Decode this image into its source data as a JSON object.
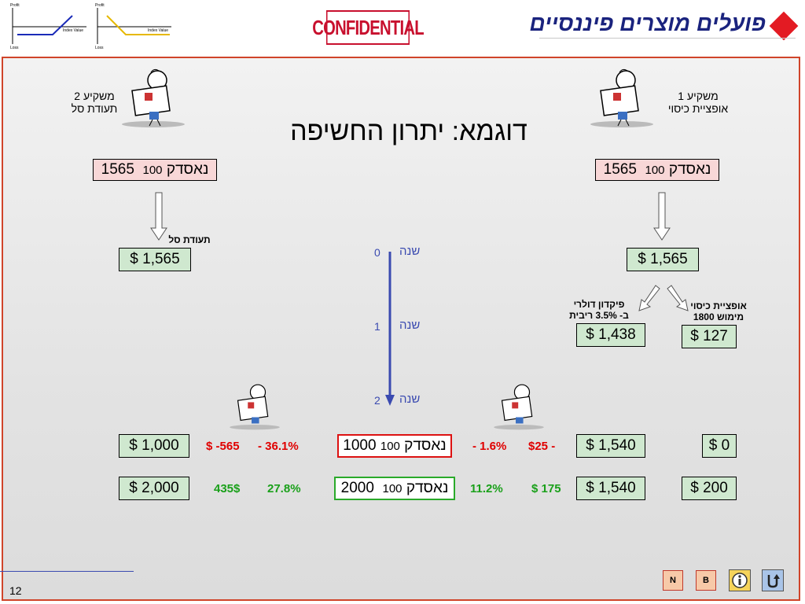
{
  "header": {
    "confidential": "CONFIDENTIAL",
    "logo_text": "פועלים מוצרים פיננסיים",
    "chart1": {
      "profit": "Profit",
      "loss": "Loss",
      "index": "Index Value"
    },
    "chart2": {
      "profit": "Profit",
      "loss": "Loss",
      "index": "Index Value"
    }
  },
  "title": "דוגמא: יתרון החשיפה",
  "investor1": {
    "line1": "משקיע 1",
    "line2": "אופציית כיסוי"
  },
  "investor2": {
    "line1": "משקיע 2",
    "line2": "תעודת סל"
  },
  "left": {
    "nasdaq_name": "נאסדק",
    "nasdaq_100": "100",
    "nasdaq_value": "1565",
    "label": "תעודת סל",
    "amount": "$ 1,565"
  },
  "right": {
    "nasdaq_name": "נאסדק",
    "nasdaq_100": "100",
    "nasdaq_value": "1565",
    "amount": "$ 1,565",
    "deposit_label_1": "פיקדון דולרי",
    "deposit_label_2": "ב- 3.5% ריבית",
    "deposit_amount": "$ 1,438",
    "option_label_1": "אופציית כיסוי",
    "option_label_2": "מימוש 1800",
    "option_amount": "$ 127"
  },
  "timeline": {
    "year_word": "שנה",
    "y0": "0",
    "y1": "1",
    "y2": "2"
  },
  "scenario1": {
    "nasdaq_name": "נאסדק",
    "nasdaq_100": "100",
    "nasdaq_value": "1000",
    "left_amount": "$ 1,000",
    "left_change": "$ -565",
    "left_pct": "- 36.1%",
    "right_change": "$25 -",
    "right_pct": "- 1.6%",
    "right_amount": "$ 1,540",
    "option_amount": "$ 0"
  },
  "scenario2": {
    "nasdaq_name": "נאסדק",
    "nasdaq_100": "100",
    "nasdaq_value": "2000",
    "left_amount": "$ 2,000",
    "left_change": "435$",
    "left_pct": "27.8%",
    "right_change": "$ 175",
    "right_pct": "11.2%",
    "right_amount": "$ 1,540",
    "option_amount": "$ 200"
  },
  "nav": {
    "n": "N",
    "b": "B"
  },
  "slide_number": "12"
}
